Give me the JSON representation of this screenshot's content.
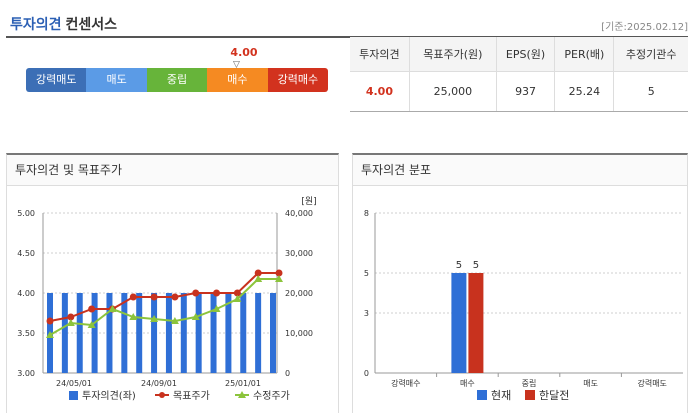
{
  "header": {
    "title_main": "투자의견",
    "title_sub": "컨센서스",
    "date": "[기준:2025.02.12]"
  },
  "scale": {
    "current_value": "4.00",
    "items": [
      {
        "label": "강력매도",
        "color": "#3c6fb6"
      },
      {
        "label": "매도",
        "color": "#5b9be6"
      },
      {
        "label": "중립",
        "color": "#67b43a"
      },
      {
        "label": "매수",
        "color": "#f58a22"
      },
      {
        "label": "강력매수",
        "color": "#d2321e"
      }
    ]
  },
  "summary": {
    "headers": [
      "투자의견",
      "목표주가(원)",
      "EPS(원)",
      "PER(배)",
      "추정기관수"
    ],
    "values": [
      "4.00",
      "25,000",
      "937",
      "25.24",
      "5"
    ]
  },
  "panel1": {
    "title": "투자의견 및 목표주가"
  },
  "panel2": {
    "title": "투자의견 분포"
  },
  "chart_data": [
    {
      "type": "bar+line",
      "unit_label": "[원]",
      "x_ticks": [
        "24/05/01",
        "24/09/01",
        "25/01/01"
      ],
      "y_left": {
        "ticks": [
          "5.00",
          "4.50",
          "4.00",
          "3.50",
          "3.00"
        ],
        "range": [
          3.0,
          5.0
        ]
      },
      "y_right": {
        "ticks": [
          "40,000",
          "30,000",
          "20,000",
          "10,000",
          "0"
        ],
        "range": [
          0,
          40000
        ]
      },
      "series": [
        {
          "name": "투자의견(좌)",
          "kind": "bar",
          "axis": "left",
          "color": "#2f6fd6",
          "values": [
            4.0,
            4.0,
            4.0,
            4.0,
            4.0,
            4.0,
            4.0,
            4.0,
            4.0,
            4.0,
            4.0,
            4.0,
            4.0,
            4.0,
            4.0,
            4.0
          ]
        },
        {
          "name": "목표주가",
          "kind": "line",
          "axis": "right",
          "color": "#c8321e",
          "values": [
            13000,
            14000,
            16000,
            16000,
            19000,
            19000,
            19000,
            20000,
            20000,
            20000,
            25000,
            25000
          ]
        },
        {
          "name": "수정주가",
          "kind": "line",
          "axis": "right",
          "color": "#8cc43c",
          "values": [
            9500,
            12500,
            12000,
            16000,
            14000,
            13500,
            13000,
            14000,
            16000,
            18500,
            23500,
            23500
          ]
        }
      ]
    },
    {
      "type": "bar",
      "categories": [
        "강력매수",
        "매수",
        "중립",
        "매도",
        "강력매도"
      ],
      "y_ticks": [
        "8",
        "5",
        "3",
        "0"
      ],
      "ylim": [
        0,
        8
      ],
      "series": [
        {
          "name": "현재",
          "color": "#2f6fd6",
          "values": [
            0,
            5,
            0,
            0,
            0
          ]
        },
        {
          "name": "한달전",
          "color": "#c8321e",
          "values": [
            0,
            5,
            0,
            0,
            0
          ]
        }
      ]
    }
  ]
}
